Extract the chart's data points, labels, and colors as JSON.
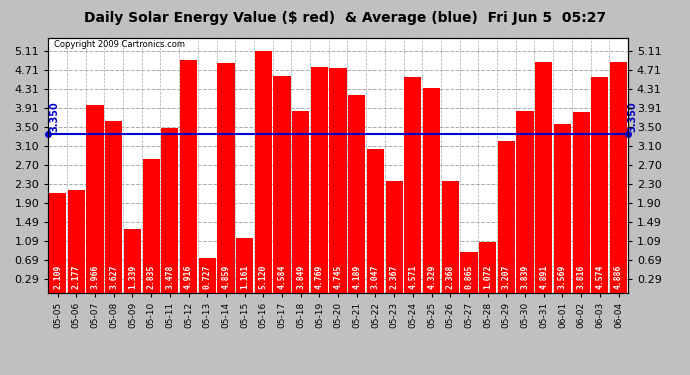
{
  "title": "Daily Solar Energy Value ($ red)  & Average (blue)  Fri Jun 5  05:27",
  "copyright": "Copyright 2009 Cartronics.com",
  "average": 3.35,
  "categories": [
    "05-05",
    "05-06",
    "05-07",
    "05-08",
    "05-09",
    "05-10",
    "05-11",
    "05-12",
    "05-13",
    "05-14",
    "05-15",
    "05-16",
    "05-17",
    "05-18",
    "05-19",
    "05-20",
    "05-21",
    "05-22",
    "05-23",
    "05-24",
    "05-25",
    "05-26",
    "05-27",
    "05-28",
    "05-29",
    "05-30",
    "05-31",
    "06-01",
    "06-02",
    "06-03",
    "06-04"
  ],
  "values": [
    2.109,
    2.177,
    3.966,
    3.627,
    1.339,
    2.835,
    3.478,
    4.916,
    0.727,
    4.859,
    1.161,
    5.12,
    4.584,
    3.849,
    4.769,
    4.745,
    4.189,
    3.047,
    2.367,
    4.571,
    4.329,
    2.368,
    0.865,
    1.072,
    3.207,
    3.839,
    4.891,
    3.569,
    3.816,
    4.574,
    4.886
  ],
  "yticks": [
    0.29,
    0.69,
    1.09,
    1.49,
    1.9,
    2.3,
    2.7,
    3.1,
    3.5,
    3.91,
    4.31,
    4.71,
    5.11
  ],
  "bar_color": "#FF0000",
  "avg_line_color": "#0000CC",
  "bg_color": "#C0C0C0",
  "plot_bg_color": "#FFFFFF",
  "text_in_bar_color": "#FFFFFF",
  "avg_label_color": "#0000CC",
  "avg_label": "3.350",
  "title_fontsize": 10,
  "ylabel_fontsize": 8,
  "xlabel_fontsize": 6.5,
  "value_fontsize": 5.8,
  "ymin": 0.0,
  "ymax": 5.4
}
